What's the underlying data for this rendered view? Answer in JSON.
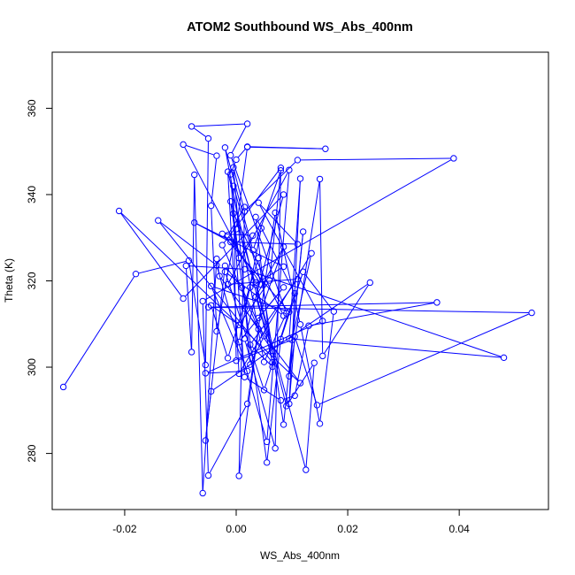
{
  "chart_data": {
    "type": "line",
    "title": "ATOM2 Southbound WS_Abs_400nm",
    "xlabel": "WS_Abs_400nm",
    "ylabel": "Theta (K)",
    "xlim": [
      -0.033,
      0.056
    ],
    "ylim": [
      267,
      373
    ],
    "x_ticks": [
      -0.02,
      0.0,
      0.02,
      0.04
    ],
    "x_tick_labels": [
      "-0.02",
      "0.00",
      "0.02",
      "0.04"
    ],
    "y_ticks": [
      280,
      300,
      320,
      340,
      360
    ],
    "y_tick_labels": [
      "280",
      "300",
      "320",
      "340",
      "360"
    ],
    "grid": false,
    "line_color": "#0000ff",
    "marker": "open-circle",
    "series": [
      {
        "points": [
          [
            -0.031,
            295.4
          ],
          [
            -0.018,
            321.6
          ],
          [
            -0.0085,
            324.7
          ],
          [
            -0.0055,
            300.5
          ],
          [
            -0.005,
            353.0
          ],
          [
            -0.008,
            355.8
          ],
          [
            0.002,
            356.4
          ],
          [
            -0.001,
            349.1
          ],
          [
            0.009,
            312.5
          ],
          [
            0.005,
            301.2
          ],
          [
            -0.002,
            350.9
          ],
          [
            0.003,
            327.1
          ],
          [
            0.008,
            345.6
          ],
          [
            0.006,
            320.1
          ],
          [
            0.0005,
            309.8
          ],
          [
            -0.0045,
            314.3
          ],
          [
            -0.0015,
            302.1
          ],
          [
            0.004,
            325.3
          ],
          [
            0.0085,
            286.7
          ],
          [
            0.012,
            331.4
          ],
          [
            0.0095,
            297.9
          ],
          [
            0.015,
            343.6
          ],
          [
            0.0155,
            302.6
          ],
          [
            0.024,
            319.6
          ],
          [
            -0.0045,
            294.4
          ],
          [
            -0.0055,
            283.0
          ],
          [
            -0.002,
            323.5
          ],
          [
            0.001,
            318.4
          ],
          [
            0.005,
            307.2
          ],
          [
            0.0025,
            300.6
          ],
          [
            -0.0005,
            346.3
          ],
          [
            0.0015,
            336.1
          ],
          [
            0.011,
            348.0
          ],
          [
            0.039,
            348.4
          ],
          [
            -0.006,
            315.3
          ],
          [
            -0.005,
            274.9
          ],
          [
            0.002,
            291.5
          ],
          [
            0.007,
            335.8
          ],
          [
            0.0115,
            309.9
          ],
          [
            0.015,
            286.9
          ],
          [
            0.0175,
            312.9
          ],
          [
            0.012,
            322.1
          ],
          [
            0.008,
            306.5
          ],
          [
            0.0055,
            277.9
          ],
          [
            -0.001,
            338.4
          ],
          [
            0.0035,
            319.1
          ],
          [
            0.009,
            291.0
          ],
          [
            0.014,
            301.0
          ],
          [
            0.0125,
            276.2
          ],
          [
            0.0035,
            319.6
          ],
          [
            -0.0095,
            351.6
          ],
          [
            -0.0035,
            349.0
          ],
          [
            -0.0045,
            337.4
          ],
          [
            -0.0035,
            308.3
          ],
          [
            0.0,
            332.0
          ],
          [
            0.002,
            351.0
          ],
          [
            0.016,
            350.6
          ],
          [
            0.002,
            351.1
          ],
          [
            0.0,
            348.1
          ],
          [
            -0.001,
            344.7
          ],
          [
            0.0015,
            297.7
          ],
          [
            0.008,
            292.3
          ],
          [
            0.0105,
            293.4
          ],
          [
            0.013,
            309.6
          ],
          [
            0.036,
            315.0
          ],
          [
            -0.005,
            313.9
          ],
          [
            0.053,
            312.6
          ],
          [
            0.0145,
            291.2
          ],
          [
            0.0105,
            307.1
          ],
          [
            0.0095,
            291.5
          ],
          [
            0.0115,
            343.7
          ],
          [
            0.0095,
            306.6
          ],
          [
            0.048,
            302.2
          ],
          [
            0.0015,
            322.7
          ],
          [
            -0.009,
            323.5
          ],
          [
            -0.008,
            303.5
          ],
          [
            -0.0075,
            344.6
          ],
          [
            -0.006,
            270.8
          ],
          [
            -0.0035,
            325.1
          ],
          [
            -0.003,
            321.1
          ],
          [
            0.0115,
            296.3
          ],
          [
            -0.021,
            336.2
          ],
          [
            -0.0095,
            315.9
          ],
          [
            0.0085,
            340.0
          ],
          [
            0.0015,
            306.6
          ],
          [
            0.007,
            281.2
          ],
          [
            0.008,
            346.2
          ],
          [
            -0.0025,
            328.3
          ],
          [
            0.004,
            308.8
          ],
          [
            0.0005,
            274.8
          ],
          [
            0.0015,
            337.1
          ],
          [
            -0.0015,
            330.6
          ],
          [
            0.0045,
            319.1
          ],
          [
            -0.0005,
            342.0
          ],
          [
            0.0,
            301.5
          ],
          [
            0.01,
            306.3
          ],
          [
            0.0135,
            326.4
          ],
          [
            0.0005,
            298.5
          ],
          [
            -0.0015,
            345.3
          ],
          [
            0.0065,
            301.1
          ],
          [
            -0.014,
            334.0
          ],
          [
            -0.0035,
            323.6
          ],
          [
            0.0055,
            282.7
          ],
          [
            0.0095,
            345.7
          ],
          [
            -0.0015,
            319.2
          ],
          [
            0.011,
            320.4
          ],
          [
            0.0025,
            305.2
          ],
          [
            0.0065,
            300.1
          ],
          [
            0.0035,
            334.8
          ],
          [
            0.0105,
            317.1
          ],
          [
            0.005,
            294.7
          ],
          [
            -0.002,
            322.1
          ],
          [
            0.0085,
            311.9
          ],
          [
            -0.0005,
            335.6
          ],
          [
            0.0005,
            325.3
          ],
          [
            0.003,
            330.5
          ],
          [
            -0.0025,
            330.9
          ],
          [
            0.0095,
            312.8
          ],
          [
            -0.0045,
            318.8
          ],
          [
            0.002,
            299.1
          ],
          [
            -0.0055,
            298.6
          ],
          [
            0.0155,
            310.7
          ],
          [
            0.004,
            338.1
          ],
          [
            0.011,
            328.5
          ],
          [
            -0.001,
            329.0
          ],
          [
            -0.0075,
            333.5
          ],
          [
            0.0085,
            323.3
          ],
          [
            0.0025,
            318.5
          ],
          [
            0.0015,
            313.6
          ],
          [
            0.0065,
            303.8
          ],
          [
            0.0035,
            316.3
          ],
          [
            0.0085,
            327.9
          ],
          [
            0.004,
            311.4
          ],
          [
            0.0085,
            318.5
          ],
          [
            0.0005,
            305.8
          ],
          [
            0.0045,
            332.2
          ]
        ]
      }
    ]
  }
}
